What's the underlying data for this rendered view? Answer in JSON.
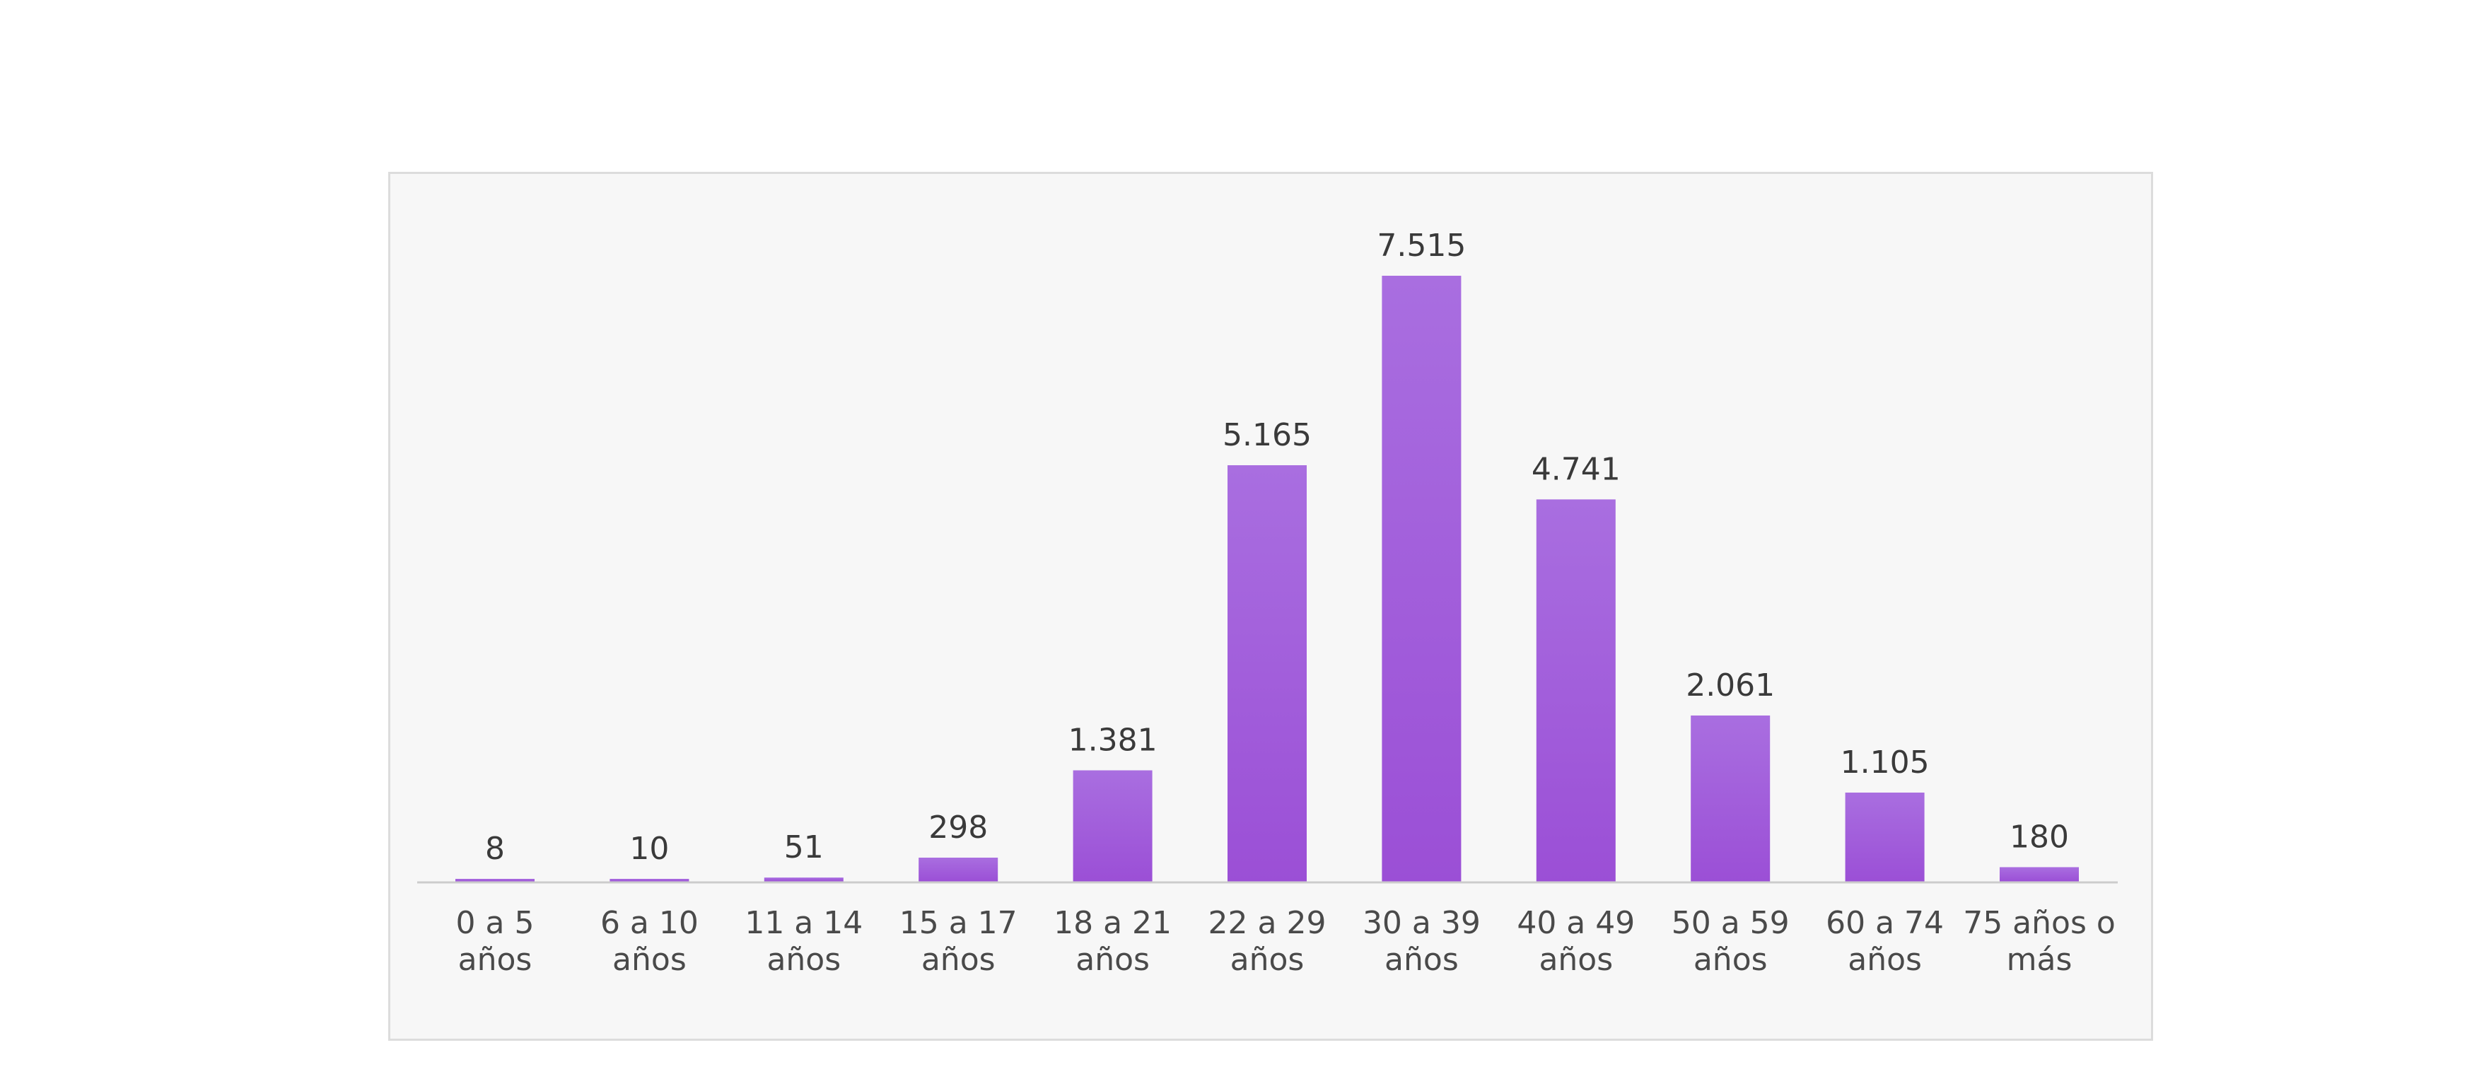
{
  "chart_data": {
    "type": "bar",
    "title": "",
    "xlabel": "",
    "ylabel": "",
    "categories": [
      [
        "0 a 5",
        "años"
      ],
      [
        "6 a 10",
        "años"
      ],
      [
        "11 a 14",
        "años"
      ],
      [
        "15 a 17",
        "años"
      ],
      [
        "18 a 21",
        "años"
      ],
      [
        "22 a 29",
        "años"
      ],
      [
        "30 a 39",
        "años"
      ],
      [
        "40 a 49",
        "años"
      ],
      [
        "50 a 59",
        "años"
      ],
      [
        "60 a 74",
        "años"
      ],
      [
        "75 años o",
        "más"
      ]
    ],
    "values": [
      8,
      10,
      51,
      298,
      1381,
      5165,
      7515,
      4741,
      2061,
      1105,
      180
    ],
    "value_labels": [
      "8",
      "10",
      "51",
      "298",
      "1.381",
      "5.165",
      "7.515",
      "4.741",
      "2.061",
      "1.105",
      "180"
    ],
    "ylim": [
      0,
      7515
    ],
    "grid": false,
    "legend": "none",
    "bar_color": "#9b4fd6",
    "bar_color_light": "#a96ee0",
    "panel_background": "#f7f7f7",
    "axis_color": "#cccccc"
  }
}
